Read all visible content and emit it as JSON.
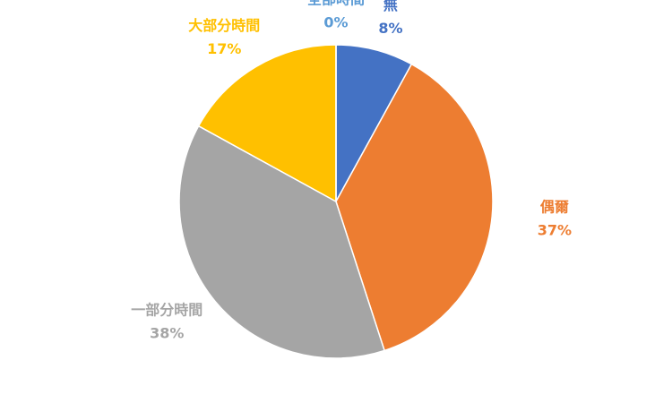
{
  "chart_data": {
    "type": "pie",
    "categories": [
      "無",
      "偶爾",
      "一部分時間",
      "大部分時間",
      "全部時間"
    ],
    "values": [
      8,
      37,
      38,
      17,
      0
    ],
    "value_labels": [
      "8%",
      "37%",
      "38%",
      "17%",
      "0%"
    ],
    "colors": [
      "#4472c4",
      "#ed7d31",
      "#a5a5a5",
      "#ffc000",
      "#5b9bd5"
    ]
  }
}
